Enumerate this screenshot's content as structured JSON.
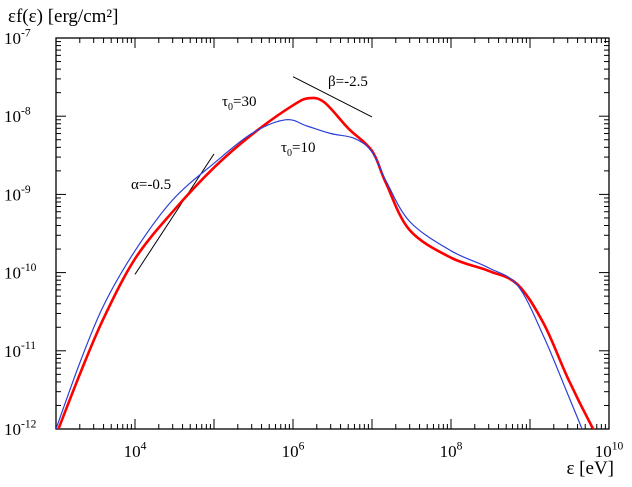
{
  "chart_data": {
    "type": "line",
    "ylabel": "εf(ε) [erg/cm²]",
    "xlabel": "ε [eV]",
    "x_scale": "log",
    "y_scale": "log",
    "xlim": [
      1000,
      10000000000
    ],
    "ylim": [
      1e-12,
      1e-07
    ],
    "x_ticks": [
      {
        "value": 10000,
        "base": "10",
        "exp": "4"
      },
      {
        "value": 1000000,
        "base": "10",
        "exp": "6"
      },
      {
        "value": 100000000,
        "base": "10",
        "exp": "8"
      },
      {
        "value": 10000000000,
        "base": "10",
        "exp": "10"
      }
    ],
    "y_ticks": [
      {
        "value": 1e-07,
        "base": "10",
        "exp": "-7"
      },
      {
        "value": 1e-08,
        "base": "10",
        "exp": "-8"
      },
      {
        "value": 1e-09,
        "base": "10",
        "exp": "-9"
      },
      {
        "value": 1e-10,
        "base": "10",
        "exp": "-10"
      },
      {
        "value": 1e-11,
        "base": "10",
        "exp": "-11"
      },
      {
        "value": 1e-12,
        "base": "10",
        "exp": "-12"
      }
    ],
    "grid": false,
    "series": [
      {
        "name": "τ0=30",
        "label_base": "τ",
        "label_sub": "0",
        "label_rest": "=30",
        "color": "#ff0000",
        "points": [
          [
            1000,
            8.3e-13
          ],
          [
            2000,
            5e-12
          ],
          [
            4000,
            2.6e-11
          ],
          [
            10000,
            1.5e-10
          ],
          [
            30000,
            6e-10
          ],
          [
            100000,
            2.2e-09
          ],
          [
            300000,
            5.8e-09
          ],
          [
            1000000,
            1.38e-08
          ],
          [
            1600000,
            1.7e-08
          ],
          [
            2500000,
            1.5e-08
          ],
          [
            5000000,
            7e-09
          ],
          [
            10000000,
            3.6e-09
          ],
          [
            15000000,
            1.4e-09
          ],
          [
            30000000,
            3.5e-10
          ],
          [
            100000000,
            1.55e-10
          ],
          [
            300000000,
            1.05e-10
          ],
          [
            700000000,
            7e-11
          ],
          [
            1500000000,
            2.2e-11
          ],
          [
            3000000000,
            4.5e-12
          ],
          [
            6000000000,
            1.1e-12
          ],
          [
            8000000000,
            7e-13
          ]
        ]
      },
      {
        "name": "τ0=10",
        "label_base": "τ",
        "label_sub": "0",
        "label_rest": "=10",
        "color": "#2b3fd8",
        "points": [
          [
            1000,
            1e-12
          ],
          [
            2000,
            7e-12
          ],
          [
            4000,
            3.8e-11
          ],
          [
            10000,
            1.9e-10
          ],
          [
            30000,
            8.5e-10
          ],
          [
            100000,
            2.5e-09
          ],
          [
            300000,
            6e-09
          ],
          [
            800000,
            9e-09
          ],
          [
            1500000,
            7.5e-09
          ],
          [
            3000000,
            6e-09
          ],
          [
            6000000,
            5.2e-09
          ],
          [
            10000000,
            3.5e-09
          ],
          [
            15000000,
            1.5e-09
          ],
          [
            30000000,
            4.5e-10
          ],
          [
            100000000,
            1.9e-10
          ],
          [
            300000000,
            1.15e-10
          ],
          [
            700000000,
            6.8e-11
          ],
          [
            1500000000,
            1.5e-11
          ],
          [
            3000000000,
            2.8e-12
          ],
          [
            5000000000,
            8e-13
          ]
        ]
      }
    ],
    "annotations": [
      {
        "text": "α=-0.5",
        "x": 25000,
        "y": 1.7e-09
      },
      {
        "text": "β=-2.5",
        "x": 7000000,
        "y": 3.5e-08
      }
    ],
    "reference_lines": [
      {
        "name": "alpha",
        "from": [
          10000,
          9.5e-11
        ],
        "to": [
          100000,
          3.3e-09
        ]
      },
      {
        "name": "beta",
        "from": [
          1000000,
          3.2e-08
        ],
        "to": [
          10000000,
          9.8e-09
        ]
      }
    ]
  }
}
